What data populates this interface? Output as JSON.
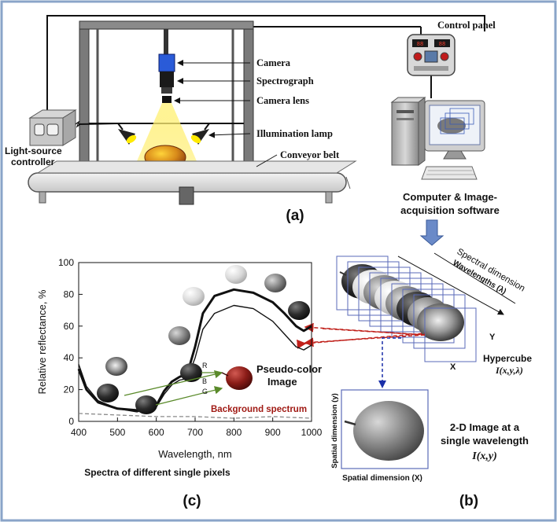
{
  "setup": {
    "control_panel_label": "Control panel",
    "panel_display_left": "88",
    "panel_display_right": "88",
    "camera_label": "Camera",
    "spectrograph_label": "Spectrograph",
    "camera_lens_label": "Camera lens",
    "illumination_lamp_label": "Illumination lamp",
    "conveyor_belt_label": "Conveyor belt",
    "light_source_label_1": "Light-source",
    "light_source_label_2": "controller",
    "computer_label_1": "Computer & Image-",
    "computer_label_2": "acquisition software",
    "panel_tag": "(a)"
  },
  "hypercube": {
    "spectral_label": "Spectral dimension",
    "wavelengths_label": "Wavelengths (λ)",
    "y_label": "Y",
    "x_label": "X",
    "hypercube_label": "Hypercube",
    "hypercube_math": "I(x,y,λ)",
    "spatial_y_label": "Spatial dimension (y)",
    "spatial_x_label": "Spatial dimension (X)",
    "single_label_1": "2-D Image at a",
    "single_label_2": "single wavelength",
    "single_math": "I(x,y)",
    "panel_tag": "(b)"
  },
  "spectrum": {
    "pseudo_label_1": "Pseudo-color",
    "pseudo_label_2": "Image",
    "channel_r": "R",
    "channel_b": "B",
    "channel_g": "G",
    "background_label": "Background spectrum",
    "caption": "Spectra of different single pixels",
    "panel_tag": "(c)"
  },
  "chart_data": {
    "type": "line",
    "xlabel": "Wavelength, nm",
    "ylabel": "Relative reflectance, %",
    "xlim": [
      400,
      1000
    ],
    "ylim": [
      0,
      100
    ],
    "xticks": [
      400,
      500,
      600,
      700,
      800,
      900,
      1000
    ],
    "yticks": [
      0,
      20,
      40,
      60,
      80,
      100
    ],
    "grid": false,
    "series": [
      {
        "style": "thick-black",
        "x": [
          400,
          420,
          450,
          500,
          550,
          600,
          620,
          640,
          660,
          680,
          700,
          720,
          750,
          800,
          850,
          900,
          930,
          960,
          980,
          1000
        ],
        "y": [
          33,
          20,
          12,
          8,
          7,
          10,
          19,
          25,
          28,
          30,
          47,
          68,
          79,
          83,
          81,
          75,
          68,
          60,
          57,
          60
        ]
      },
      {
        "style": "thin-black",
        "x": [
          400,
          420,
          450,
          500,
          550,
          600,
          620,
          640,
          660,
          680,
          700,
          720,
          750,
          800,
          850,
          900,
          930,
          960,
          980,
          1000
        ],
        "y": [
          36,
          22,
          13,
          8,
          6,
          9,
          17,
          23,
          26,
          27,
          40,
          58,
          68,
          73,
          71,
          63,
          55,
          47,
          45,
          48
        ]
      },
      {
        "name": "Background spectrum",
        "style": "dashed-gray",
        "x": [
          400,
          500,
          600,
          700,
          800,
          900,
          1000
        ],
        "y": [
          5,
          4,
          3,
          3,
          2,
          3,
          2
        ]
      }
    ]
  }
}
